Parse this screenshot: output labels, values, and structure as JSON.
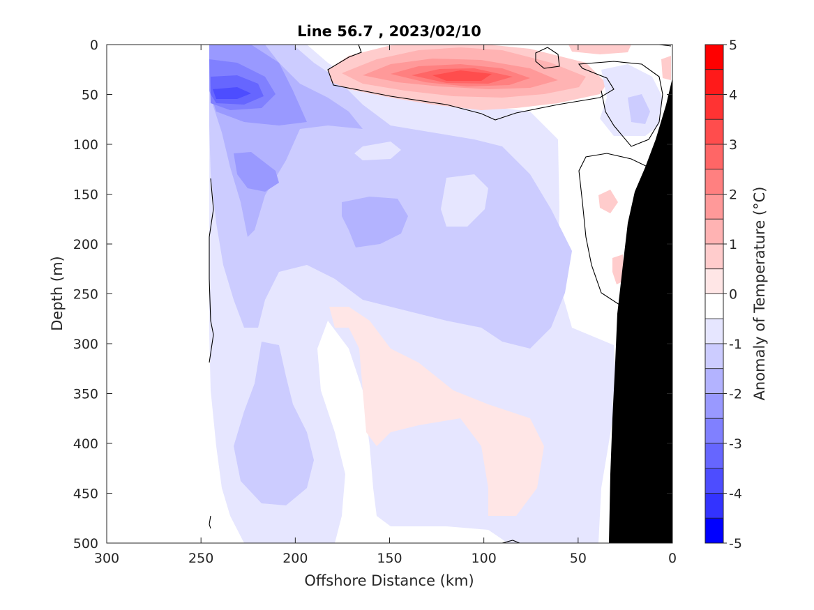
{
  "chart_data": {
    "type": "heatmap",
    "subtype": "filled-contour section",
    "title": "Line 56.7 , 2023/02/10",
    "xlabel": "Offshore Distance (km)",
    "ylabel": "Depth (m)",
    "colorbar_label": "Anomaly of Temperature (°C)",
    "xlim": [
      300,
      0
    ],
    "ylim": [
      500,
      0
    ],
    "x_reversed": true,
    "y_reversed": true,
    "x_ticks": [
      "300",
      "250",
      "200",
      "150",
      "100",
      "50",
      "0"
    ],
    "y_ticks": [
      "0",
      "50",
      "100",
      "150",
      "200",
      "250",
      "300",
      "350",
      "400",
      "450",
      "500"
    ],
    "colorbar_ticks": [
      "5",
      "4",
      "3",
      "2",
      "1",
      "0",
      "-1",
      "-2",
      "-3",
      "-4",
      "-5"
    ],
    "colorbar_range": [
      -5,
      5
    ],
    "colorbar_step": 0.5,
    "zero_contour": "black line",
    "land_mask": "black (continental slope, right side)",
    "colormap": {
      "levels": [
        {
          "lo": 4.5,
          "hi": 5.0,
          "color": "#ff0000"
        },
        {
          "lo": 4.0,
          "hi": 4.5,
          "color": "#ff1a1a"
        },
        {
          "lo": 3.5,
          "hi": 4.0,
          "color": "#ff3333"
        },
        {
          "lo": 3.0,
          "hi": 3.5,
          "color": "#ff4d4d"
        },
        {
          "lo": 2.5,
          "hi": 3.0,
          "color": "#ff6666"
        },
        {
          "lo": 2.0,
          "hi": 2.5,
          "color": "#ff8080"
        },
        {
          "lo": 1.5,
          "hi": 2.0,
          "color": "#ff9999"
        },
        {
          "lo": 1.0,
          "hi": 1.5,
          "color": "#ffb3b3"
        },
        {
          "lo": 0.5,
          "hi": 1.0,
          "color": "#ffcccc"
        },
        {
          "lo": 0.0,
          "hi": 0.5,
          "color": "#ffe6e6"
        },
        {
          "lo": -0.5,
          "hi": 0.0,
          "color": "#ffffff"
        },
        {
          "lo": -1.0,
          "hi": -0.5,
          "color": "#e6e6ff"
        },
        {
          "lo": -1.5,
          "hi": -1.0,
          "color": "#ccccff"
        },
        {
          "lo": -2.0,
          "hi": -1.5,
          "color": "#b3b3ff"
        },
        {
          "lo": -2.5,
          "hi": -2.0,
          "color": "#9999ff"
        },
        {
          "lo": -3.0,
          "hi": -2.5,
          "color": "#8080ff"
        },
        {
          "lo": -3.5,
          "hi": -3.0,
          "color": "#6666ff"
        },
        {
          "lo": -4.0,
          "hi": -3.5,
          "color": "#4d4dff"
        },
        {
          "lo": -4.5,
          "hi": -4.0,
          "color": "#3333ff"
        },
        {
          "lo": -5.0,
          "hi": -4.5,
          "color": "#0000ff"
        }
      ]
    },
    "anomaly_features": [
      {
        "x_km": 230,
        "depth_m": 50,
        "value": -3.5
      },
      {
        "x_km": 215,
        "depth_m": 130,
        "value": -2.0
      },
      {
        "x_km": 140,
        "depth_m": 170,
        "value": -1.5
      },
      {
        "x_km": 115,
        "depth_m": 35,
        "value": 3.0
      },
      {
        "x_km": 150,
        "depth_m": 35,
        "value": 1.5
      },
      {
        "x_km": 70,
        "depth_m": 40,
        "value": 1.0
      },
      {
        "x_km": 20,
        "depth_m": 70,
        "value": -1.0
      },
      {
        "x_km": 30,
        "depth_m": 160,
        "value": 0.5
      },
      {
        "x_km": 210,
        "depth_m": 400,
        "value": -1.0
      },
      {
        "x_km": 110,
        "depth_m": 420,
        "value": -0.5
      }
    ]
  }
}
